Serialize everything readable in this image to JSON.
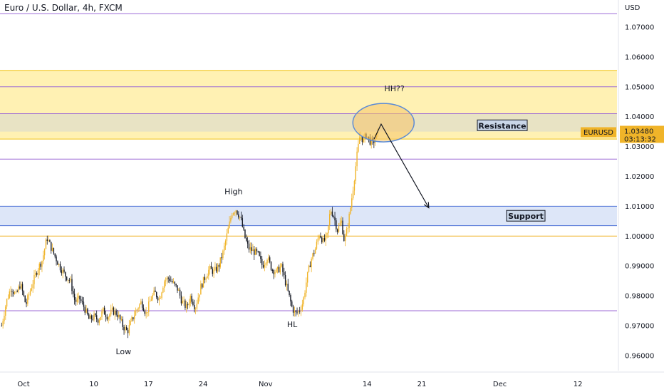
{
  "chart_data": {
    "type": "candlestick",
    "title": "Euro / U.S. Dollar, 4h, FXCM",
    "currency_label": "USD",
    "ylim": [
      0.955,
      1.0775
    ],
    "y_ticks": [
      "1.07000",
      "1.06000",
      "1.05000",
      "1.04000",
      "1.03000",
      "1.02000",
      "1.01000",
      "1.00000",
      "0.99000",
      "0.98000",
      "0.97000",
      "0.96000"
    ],
    "x_ticks": [
      {
        "label": "Oct",
        "day": 0
      },
      {
        "label": "10",
        "day": 9
      },
      {
        "label": "17",
        "day": 16
      },
      {
        "label": "24",
        "day": 23
      },
      {
        "label": "Nov",
        "day": 31
      },
      {
        "label": "14",
        "day": 44
      },
      {
        "label": "21",
        "day": 51
      },
      {
        "label": "Dec",
        "day": 61
      },
      {
        "label": "12",
        "day": 71
      }
    ],
    "bull_color": "#f0b429",
    "bear_color": "#131722",
    "price_path": [
      [
        -2.8,
        0.97
      ],
      [
        -2.2,
        0.978
      ],
      [
        -1.6,
        0.983
      ],
      [
        -1.0,
        0.98
      ],
      [
        -0.4,
        0.984
      ],
      [
        0.3,
        0.977
      ],
      [
        1.0,
        0.983
      ],
      [
        1.8,
        0.989
      ],
      [
        2.4,
        0.992
      ],
      [
        3.0,
        0.9995
      ],
      [
        3.4,
        0.997
      ],
      [
        3.9,
        0.994
      ],
      [
        4.6,
        0.99
      ],
      [
        5.3,
        0.987
      ],
      [
        6.0,
        0.985
      ],
      [
        6.6,
        0.978
      ],
      [
        7.2,
        0.979
      ],
      [
        7.8,
        0.976
      ],
      [
        8.4,
        0.972
      ],
      [
        9.0,
        0.973
      ],
      [
        9.6,
        0.972
      ],
      [
        10.2,
        0.975
      ],
      [
        10.8,
        0.973
      ],
      [
        11.4,
        0.975
      ],
      [
        12.0,
        0.974
      ],
      [
        12.7,
        0.97
      ],
      [
        13.3,
        0.968
      ],
      [
        13.9,
        0.972
      ],
      [
        14.4,
        0.975
      ],
      [
        15.1,
        0.978
      ],
      [
        15.7,
        0.974
      ],
      [
        16.3,
        0.979
      ],
      [
        16.8,
        0.981
      ],
      [
        17.4,
        0.979
      ],
      [
        18.0,
        0.985
      ],
      [
        18.6,
        0.986
      ],
      [
        19.2,
        0.984
      ],
      [
        19.8,
        0.982
      ],
      [
        20.3,
        0.978
      ],
      [
        20.9,
        0.976
      ],
      [
        21.4,
        0.98
      ],
      [
        22.0,
        0.976
      ],
      [
        22.7,
        0.983
      ],
      [
        23.2,
        0.986
      ],
      [
        23.8,
        0.989
      ],
      [
        24.4,
        0.988
      ],
      [
        25.0,
        0.99
      ],
      [
        25.6,
        0.995
      ],
      [
        26.1,
        1.001
      ],
      [
        26.7,
        1.008
      ],
      [
        27.2,
        1.009
      ],
      [
        27.8,
        1.006
      ],
      [
        28.3,
        1.0
      ],
      [
        28.8,
        0.996
      ],
      [
        29.4,
        0.995
      ],
      [
        30.0,
        0.994
      ],
      [
        30.6,
        0.99
      ],
      [
        31.2,
        0.993
      ],
      [
        31.8,
        0.989
      ],
      [
        32.4,
        0.988
      ],
      [
        33.0,
        0.99
      ],
      [
        33.5,
        0.985
      ],
      [
        34.0,
        0.98
      ],
      [
        34.4,
        0.976
      ],
      [
        34.8,
        0.974
      ],
      [
        35.3,
        0.975
      ],
      [
        35.8,
        0.978
      ],
      [
        36.3,
        0.986
      ],
      [
        36.8,
        0.992
      ],
      [
        37.4,
        0.996
      ],
      [
        37.9,
        1.001
      ],
      [
        38.4,
        0.998
      ],
      [
        38.9,
        1.0
      ],
      [
        39.3,
        1.009
      ],
      [
        39.7,
        1.007
      ],
      [
        40.2,
        1.002
      ],
      [
        40.7,
        1.005
      ],
      [
        41.1,
        0.998
      ],
      [
        41.5,
        1.003
      ],
      [
        41.9,
        1.01
      ],
      [
        42.3,
        1.018
      ],
      [
        42.7,
        1.027
      ],
      [
        43.1,
        1.034
      ],
      [
        43.5,
        1.032
      ],
      [
        43.9,
        1.034
      ],
      [
        44.3,
        1.032
      ],
      [
        44.7,
        1.031
      ],
      [
        45.1,
        1.033
      ],
      [
        45.4,
        1.0348
      ]
    ],
    "horizontal_levels": [
      {
        "value": 1.0745,
        "color": "#9c6ad6"
      },
      {
        "value": 1.05,
        "color": "#9c6ad6"
      },
      {
        "value": 1.041,
        "color": "#9c6ad6"
      },
      {
        "value": 1.0258,
        "color": "#9c6ad6"
      },
      {
        "value": 1.0,
        "color": "#f0b429"
      },
      {
        "value": 0.975,
        "color": "#9c6ad6"
      }
    ],
    "zones": [
      {
        "name": "resistance-zone",
        "from": 1.0325,
        "to": 1.0555,
        "fill": "#fff1b3"
      },
      {
        "name": "resistance-band",
        "from": 1.035,
        "to": 1.041,
        "fill": "#e8e3c4"
      },
      {
        "name": "support-zone",
        "from": 1.0035,
        "to": 1.01,
        "fill": "#dde6f8"
      }
    ],
    "annotations": {
      "resistance_label": "Resistance",
      "support_label": "Support",
      "high_label": "High",
      "low_label": "Low",
      "hl_label": "HL",
      "hh_label": "HH??"
    },
    "last_price": {
      "symbol": "EURUSD",
      "price": "1.03480",
      "countdown": "03:13:32",
      "value": 1.0348
    }
  }
}
